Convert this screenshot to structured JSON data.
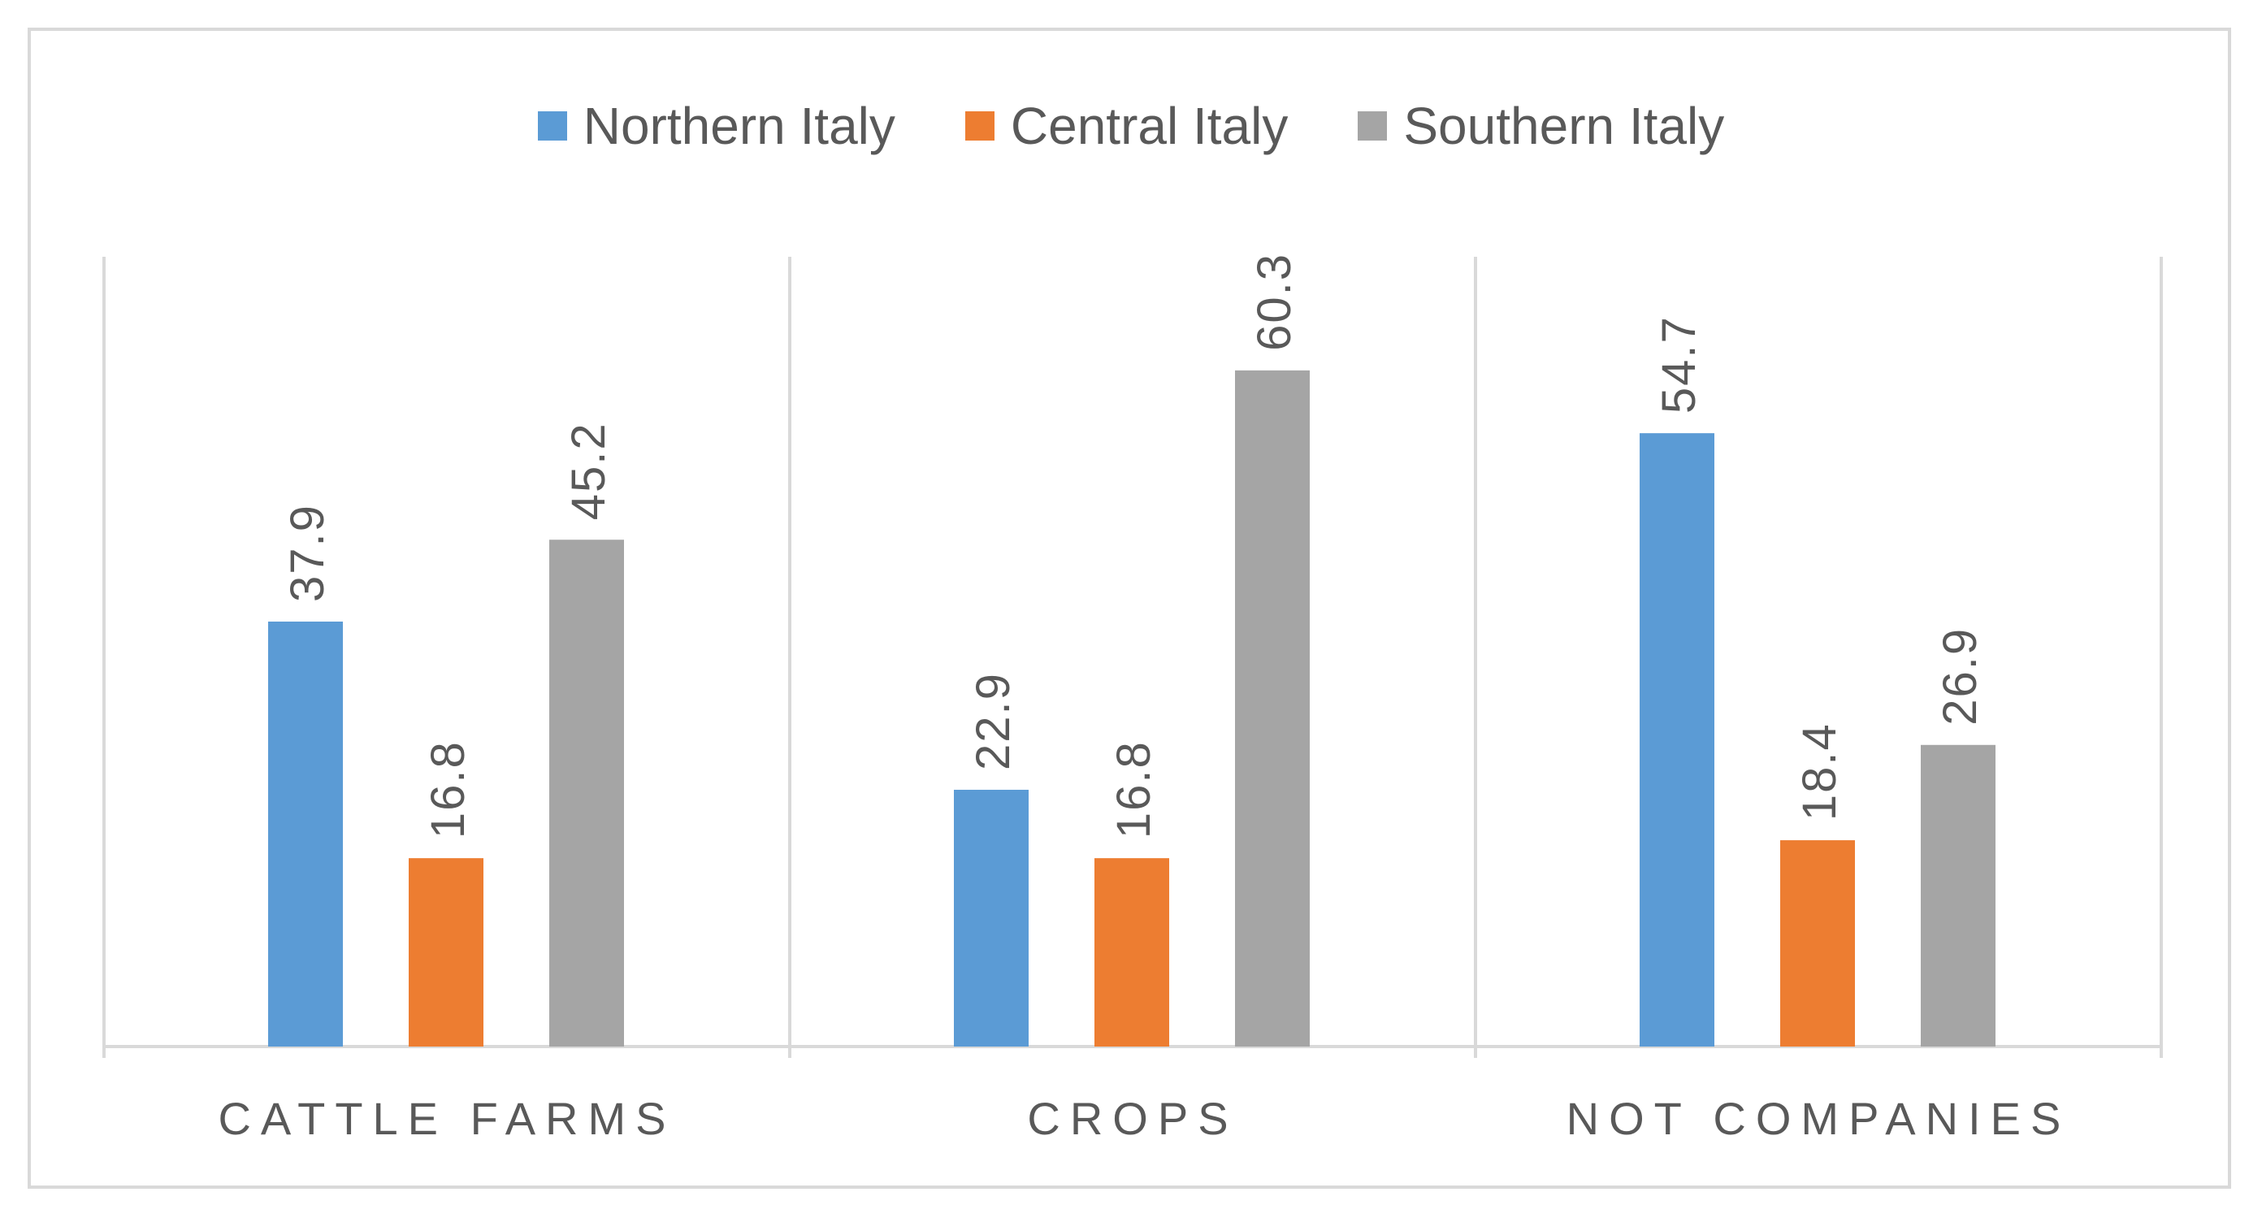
{
  "chart_data": {
    "type": "bar",
    "title": "",
    "xlabel": "",
    "ylabel": "",
    "ylim": [
      0,
      70
    ],
    "grid": false,
    "legend_position": "top",
    "categories": [
      "CATTLE FARMS",
      "CROPS",
      "NOT COMPANIES"
    ],
    "series": [
      {
        "name": "Northern Italy",
        "color": "#5b9bd5",
        "values": [
          37.9,
          22.9,
          54.7
        ],
        "labels": [
          "37.9",
          "22.9",
          "54.7"
        ]
      },
      {
        "name": "Central Italy",
        "color": "#ed7d31",
        "values": [
          16.8,
          16.8,
          18.4
        ],
        "labels": [
          "16.8",
          "16.8",
          "18.4"
        ]
      },
      {
        "name": "Southern Italy",
        "color": "#a5a5a5",
        "values": [
          45.2,
          60.3,
          26.9
        ],
        "labels": [
          "45.2",
          "60.3",
          "26.9"
        ]
      }
    ]
  }
}
